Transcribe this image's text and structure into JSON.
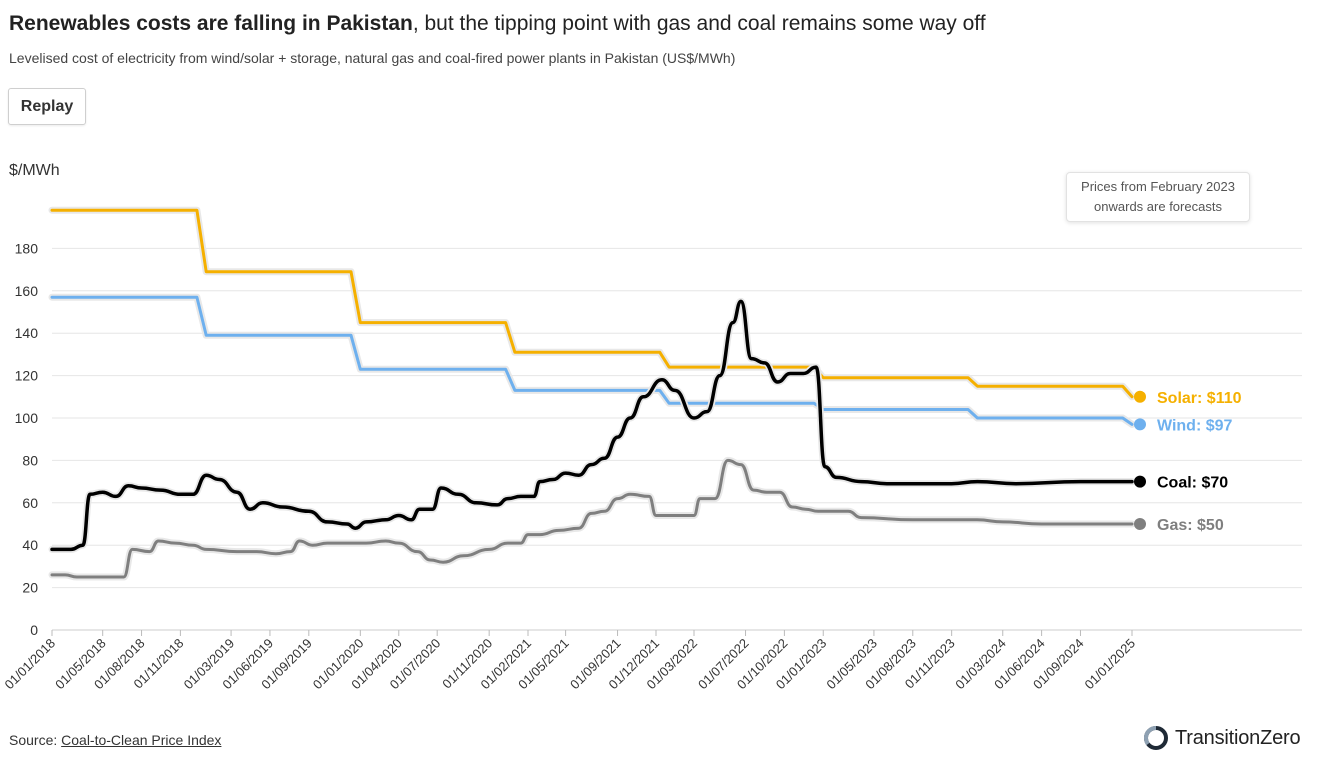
{
  "header": {
    "title_bold": "Renewables costs are falling in Pakistan",
    "title_rest": ", but the tipping point with gas and coal remains some way off",
    "subtitle": "Levelised cost of electricity from wind/solar + storage, natural gas and coal-fired power plants in Pakistan (US$/MWh)"
  },
  "controls": {
    "replay_label": "Replay"
  },
  "annotation": {
    "forecast_note": "Prices from February 2023 onwards are forecasts"
  },
  "footer": {
    "source_prefix": "Source: ",
    "source_link": "Coal-to-Clean Price Index",
    "brand": "TransitionZero"
  },
  "colors": {
    "solar": "#F5B000",
    "wind": "#6EB0EE",
    "coal": "#000000",
    "gas": "#7F7F7F",
    "grid": "#e6e6e6"
  },
  "chart_data": {
    "type": "line",
    "title": "Renewables costs are falling in Pakistan, but the tipping point with gas and coal remains some way off",
    "ylabel": "$/MWh",
    "xlabel": "",
    "ylim": [
      0,
      200
    ],
    "yticks": [
      0,
      20,
      40,
      60,
      80,
      100,
      120,
      140,
      160,
      180
    ],
    "xlim": [
      "2018-01-01",
      "2025-01-01"
    ],
    "xtick_labels": [
      "01/01/2018",
      "01/05/2018",
      "01/08/2018",
      "01/11/2018",
      "01/03/2019",
      "01/06/2019",
      "01/09/2019",
      "01/01/2020",
      "01/04/2020",
      "01/07/2020",
      "01/11/2020",
      "01/02/2021",
      "01/05/2021",
      "01/09/2021",
      "01/12/2021",
      "01/03/2022",
      "01/07/2022",
      "01/10/2022",
      "01/01/2023",
      "01/05/2023",
      "01/08/2023",
      "01/11/2023",
      "01/03/2024",
      "01/06/2024",
      "01/09/2024",
      "01/01/2025"
    ],
    "series": [
      {
        "name": "Solar",
        "label": "Solar: $110",
        "color": "#F5B000",
        "points": [
          [
            "2018-01-01",
            198
          ],
          [
            "2018-12-10",
            198
          ],
          [
            "2019-01-01",
            169
          ],
          [
            "2019-12-10",
            169
          ],
          [
            "2020-01-01",
            145
          ],
          [
            "2020-12-10",
            145
          ],
          [
            "2021-01-01",
            131
          ],
          [
            "2021-12-10",
            131
          ],
          [
            "2022-01-01",
            124
          ],
          [
            "2022-12-10",
            124
          ],
          [
            "2023-01-01",
            119
          ],
          [
            "2023-12-10",
            119
          ],
          [
            "2024-01-01",
            115
          ],
          [
            "2024-12-10",
            115
          ],
          [
            "2025-01-01",
            110
          ]
        ]
      },
      {
        "name": "Wind",
        "label": "Wind: $97",
        "color": "#6EB0EE",
        "points": [
          [
            "2018-01-01",
            157
          ],
          [
            "2018-12-10",
            157
          ],
          [
            "2019-01-01",
            139
          ],
          [
            "2019-12-10",
            139
          ],
          [
            "2020-01-01",
            123
          ],
          [
            "2020-12-10",
            123
          ],
          [
            "2021-01-01",
            113
          ],
          [
            "2021-12-10",
            113
          ],
          [
            "2022-01-01",
            107
          ],
          [
            "2022-12-10",
            107
          ],
          [
            "2023-01-01",
            104
          ],
          [
            "2023-12-10",
            104
          ],
          [
            "2024-01-01",
            100
          ],
          [
            "2024-12-10",
            100
          ],
          [
            "2025-01-01",
            97
          ]
        ]
      },
      {
        "name": "Coal",
        "label": "Coal: $70",
        "color": "#000000",
        "points": [
          [
            "2018-01-01",
            38
          ],
          [
            "2018-02-15",
            38
          ],
          [
            "2018-03-15",
            40
          ],
          [
            "2018-04-01",
            64
          ],
          [
            "2018-05-01",
            65
          ],
          [
            "2018-06-01",
            63
          ],
          [
            "2018-07-01",
            68
          ],
          [
            "2018-08-01",
            67
          ],
          [
            "2018-09-15",
            66
          ],
          [
            "2018-11-01",
            64
          ],
          [
            "2018-12-01",
            64
          ],
          [
            "2019-01-01",
            73
          ],
          [
            "2019-02-01",
            71
          ],
          [
            "2019-03-15",
            65
          ],
          [
            "2019-04-15",
            57
          ],
          [
            "2019-05-15",
            60
          ],
          [
            "2019-07-01",
            58
          ],
          [
            "2019-09-01",
            56
          ],
          [
            "2019-10-15",
            51
          ],
          [
            "2019-12-01",
            50
          ],
          [
            "2019-12-20",
            48
          ],
          [
            "2020-01-15",
            51
          ],
          [
            "2020-03-01",
            52
          ],
          [
            "2020-04-01",
            54
          ],
          [
            "2020-05-01",
            52
          ],
          [
            "2020-05-20",
            57
          ],
          [
            "2020-06-20",
            57
          ],
          [
            "2020-07-10",
            67
          ],
          [
            "2020-08-20",
            64
          ],
          [
            "2020-10-01",
            60
          ],
          [
            "2020-11-20",
            59
          ],
          [
            "2020-12-15",
            62
          ],
          [
            "2021-01-15",
            63
          ],
          [
            "2021-02-15",
            63
          ],
          [
            "2021-03-01",
            70
          ],
          [
            "2021-04-01",
            71
          ],
          [
            "2021-05-01",
            74
          ],
          [
            "2021-06-01",
            73
          ],
          [
            "2021-07-01",
            78
          ],
          [
            "2021-08-01",
            81
          ],
          [
            "2021-09-01",
            91
          ],
          [
            "2021-10-01",
            100
          ],
          [
            "2021-11-01",
            110
          ],
          [
            "2021-12-15",
            118
          ],
          [
            "2022-01-15",
            113
          ],
          [
            "2022-03-01",
            100
          ],
          [
            "2022-04-01",
            103
          ],
          [
            "2022-05-01",
            120
          ],
          [
            "2022-06-01",
            145
          ],
          [
            "2022-06-20",
            155
          ],
          [
            "2022-07-15",
            128
          ],
          [
            "2022-08-15",
            126
          ],
          [
            "2022-09-15",
            117
          ],
          [
            "2022-10-15",
            121
          ],
          [
            "2022-11-15",
            121
          ],
          [
            "2022-12-15",
            124
          ],
          [
            "2023-01-05",
            77
          ],
          [
            "2023-02-01",
            72
          ],
          [
            "2023-04-01",
            70
          ],
          [
            "2023-06-01",
            69
          ],
          [
            "2023-11-01",
            69
          ],
          [
            "2024-01-01",
            70
          ],
          [
            "2024-04-01",
            69
          ],
          [
            "2024-09-01",
            70
          ],
          [
            "2025-01-01",
            70
          ]
        ]
      },
      {
        "name": "Gas",
        "label": "Gas: $50",
        "color": "#7F7F7F",
        "points": [
          [
            "2018-01-01",
            26
          ],
          [
            "2018-02-01",
            26
          ],
          [
            "2018-03-01",
            25
          ],
          [
            "2018-06-01",
            25
          ],
          [
            "2018-06-20",
            25
          ],
          [
            "2018-07-10",
            38
          ],
          [
            "2018-08-20",
            37
          ],
          [
            "2018-09-10",
            42
          ],
          [
            "2018-10-20",
            41
          ],
          [
            "2018-12-01",
            40
          ],
          [
            "2019-01-01",
            38
          ],
          [
            "2019-03-15",
            37
          ],
          [
            "2019-05-01",
            37
          ],
          [
            "2019-06-15",
            36
          ],
          [
            "2019-07-20",
            37
          ],
          [
            "2019-08-10",
            42
          ],
          [
            "2019-09-10",
            40
          ],
          [
            "2019-10-15",
            41
          ],
          [
            "2019-12-01",
            41
          ],
          [
            "2020-01-15",
            41
          ],
          [
            "2020-03-01",
            42
          ],
          [
            "2020-04-01",
            41
          ],
          [
            "2020-05-15",
            37
          ],
          [
            "2020-06-15",
            33
          ],
          [
            "2020-07-15",
            32
          ],
          [
            "2020-09-01",
            35
          ],
          [
            "2020-11-01",
            38
          ],
          [
            "2020-12-15",
            41
          ],
          [
            "2021-01-15",
            41
          ],
          [
            "2021-02-01",
            45
          ],
          [
            "2021-03-01",
            45
          ],
          [
            "2021-04-15",
            47
          ],
          [
            "2021-06-01",
            48
          ],
          [
            "2021-07-01",
            55
          ],
          [
            "2021-08-01",
            56
          ],
          [
            "2021-09-01",
            62
          ],
          [
            "2021-10-01",
            64
          ],
          [
            "2021-11-15",
            63
          ],
          [
            "2021-12-01",
            54
          ],
          [
            "2022-01-15",
            54
          ],
          [
            "2022-03-01",
            54
          ],
          [
            "2022-03-15",
            62
          ],
          [
            "2022-04-20",
            62
          ],
          [
            "2022-05-20",
            80
          ],
          [
            "2022-06-20",
            78
          ],
          [
            "2022-07-20",
            66
          ],
          [
            "2022-08-20",
            65
          ],
          [
            "2022-09-20",
            65
          ],
          [
            "2022-10-20",
            58
          ],
          [
            "2022-11-20",
            57
          ],
          [
            "2022-12-20",
            56
          ],
          [
            "2023-03-01",
            56
          ],
          [
            "2023-04-01",
            53
          ],
          [
            "2023-08-01",
            52
          ],
          [
            "2023-11-01",
            52
          ],
          [
            "2024-01-01",
            52
          ],
          [
            "2024-03-01",
            51
          ],
          [
            "2024-06-01",
            50
          ],
          [
            "2024-09-01",
            50
          ],
          [
            "2025-01-01",
            50
          ]
        ]
      }
    ]
  }
}
